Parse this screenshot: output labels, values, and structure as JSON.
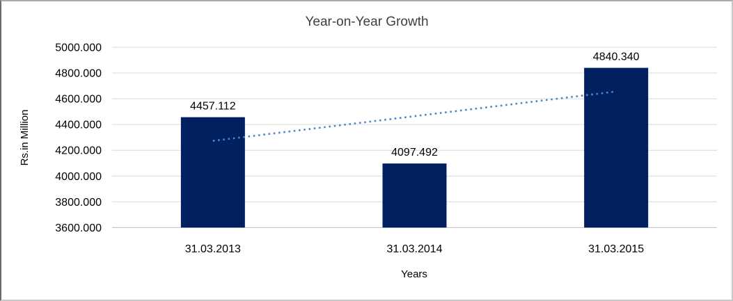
{
  "frame": {
    "background": "#FFFFFF",
    "border_left_color": "#6B6B6B",
    "border_other_color": "#C9C9C9"
  },
  "chart_data": {
    "type": "bar",
    "title": "Year-on-Year Growth",
    "categories": [
      "31.03.2013",
      "31.03.2014",
      "31.03.2015"
    ],
    "values": [
      4457.112,
      4097.492,
      4840.34
    ],
    "data_labels": [
      "4457.112",
      "4097.492",
      "4840.340"
    ],
    "xlabel": "Years",
    "ylabel": "Rs.in Million",
    "ylim": [
      3600,
      5000
    ],
    "ytick_step": 200,
    "ytick_labels": [
      "5000.000",
      "4800.000",
      "4600.000",
      "4400.000",
      "4200.000",
      "4000.000",
      "3800.000",
      "3600.000"
    ],
    "grid": true,
    "legend_position": "none",
    "trendline": {
      "style": "dotted",
      "endpoint_values": [
        4273.4,
        4656.6
      ]
    },
    "colors": {
      "bar": "#002060",
      "trendline": "#4E86C8",
      "gridline": "#D9D9D9",
      "axis_line": "#BFBFBF",
      "title_text": "#3F3F3F",
      "label_text": "#000000"
    }
  }
}
